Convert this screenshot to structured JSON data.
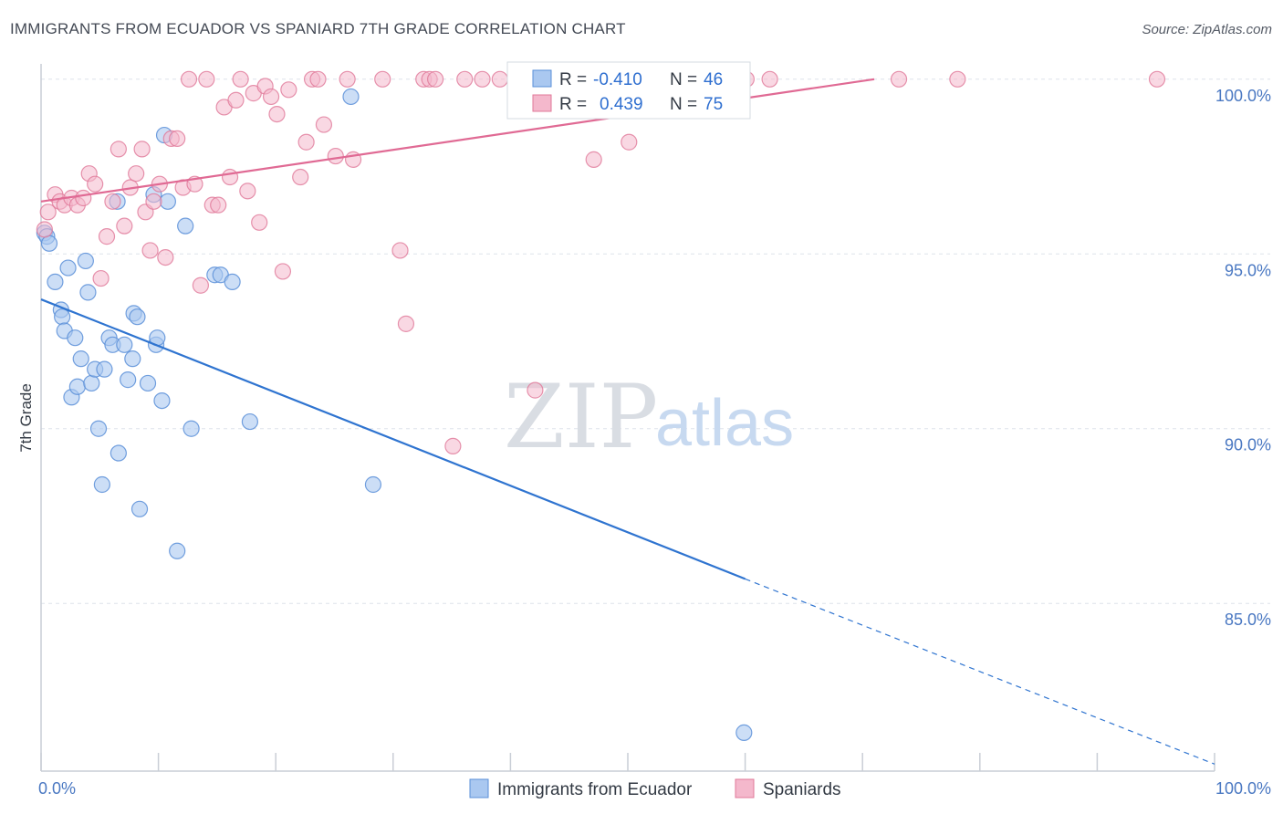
{
  "header": {
    "title": "IMMIGRANTS FROM ECUADOR VS SPANIARD 7TH GRADE CORRELATION CHART",
    "source": "Source: ZipAtlas.com"
  },
  "watermark": {
    "zip": "ZIP",
    "atlas": "atlas"
  },
  "legend_top": {
    "rows": [
      {
        "r_label": "R =",
        "r_value": "-0.410",
        "n_label": "N =",
        "n_value": "46"
      },
      {
        "r_label": "R =",
        "r_value": "0.439",
        "n_label": "N =",
        "n_value": "75"
      }
    ]
  },
  "legend_bottom": {
    "items": [
      "Immigrants from Ecuador",
      "Spaniards"
    ]
  },
  "colors": {
    "blue_fill": "#aac8f0",
    "blue_stroke": "#5a8fd8",
    "blue_line": "#2f74d0",
    "pink_fill": "#f4b8cc",
    "pink_stroke": "#e07898",
    "pink_line": "#e06a94",
    "grid": "#dde2ea",
    "axis": "#c9ced6"
  },
  "chart_data": {
    "type": "scatter",
    "ylabel": "7th Grade",
    "xlim": [
      0,
      100
    ],
    "ylim": [
      80.2,
      100.7
    ],
    "x_tick_labels": [
      {
        "value": 0,
        "label": "0.0%"
      },
      {
        "value": 100,
        "label": "100.0%"
      }
    ],
    "y_ticks": [
      {
        "value": 100,
        "label": "100.0%"
      },
      {
        "value": 95,
        "label": "95.0%"
      },
      {
        "value": 90,
        "label": "90.0%"
      },
      {
        "value": 85,
        "label": "85.0%"
      }
    ],
    "grid": true,
    "series": [
      {
        "name": "Immigrants from Ecuador",
        "points": [
          [
            0.3,
            95.6
          ],
          [
            0.5,
            95.5
          ],
          [
            0.7,
            95.3
          ],
          [
            1.2,
            94.2
          ],
          [
            1.7,
            93.4
          ],
          [
            1.8,
            93.2
          ],
          [
            2.0,
            92.8
          ],
          [
            2.3,
            94.6
          ],
          [
            2.6,
            90.9
          ],
          [
            2.9,
            92.6
          ],
          [
            3.1,
            91.2
          ],
          [
            3.4,
            92.0
          ],
          [
            3.8,
            94.8
          ],
          [
            4.0,
            93.9
          ],
          [
            4.3,
            91.3
          ],
          [
            4.6,
            91.7
          ],
          [
            4.9,
            90.0
          ],
          [
            5.2,
            88.4
          ],
          [
            5.4,
            91.7
          ],
          [
            5.8,
            92.6
          ],
          [
            6.1,
            92.4
          ],
          [
            6.6,
            89.3
          ],
          [
            7.1,
            92.4
          ],
          [
            7.4,
            91.4
          ],
          [
            7.8,
            92.0
          ],
          [
            7.9,
            93.3
          ],
          [
            8.2,
            93.2
          ],
          [
            8.4,
            87.7
          ],
          [
            9.1,
            91.3
          ],
          [
            9.6,
            96.7
          ],
          [
            9.8,
            92.4
          ],
          [
            9.9,
            92.6
          ],
          [
            10.3,
            90.8
          ],
          [
            10.5,
            98.4
          ],
          [
            10.8,
            96.5
          ],
          [
            11.6,
            86.5
          ],
          [
            12.3,
            95.8
          ],
          [
            12.8,
            90.0
          ],
          [
            14.8,
            94.4
          ],
          [
            15.3,
            94.4
          ],
          [
            16.3,
            94.2
          ],
          [
            17.8,
            90.2
          ],
          [
            26.4,
            99.5
          ],
          [
            28.3,
            88.4
          ],
          [
            59.9,
            81.3
          ],
          [
            6.5,
            96.5
          ]
        ]
      },
      {
        "name": "Spaniards",
        "points": [
          [
            0.3,
            95.7
          ],
          [
            0.6,
            96.2
          ],
          [
            1.2,
            96.7
          ],
          [
            1.6,
            96.5
          ],
          [
            2.0,
            96.4
          ],
          [
            2.6,
            96.6
          ],
          [
            3.1,
            96.4
          ],
          [
            3.6,
            96.6
          ],
          [
            4.1,
            97.3
          ],
          [
            4.6,
            97.0
          ],
          [
            5.1,
            94.3
          ],
          [
            5.6,
            95.5
          ],
          [
            6.1,
            96.5
          ],
          [
            6.6,
            98.0
          ],
          [
            7.1,
            95.8
          ],
          [
            7.6,
            96.9
          ],
          [
            8.1,
            97.3
          ],
          [
            8.6,
            98.0
          ],
          [
            8.9,
            96.2
          ],
          [
            9.3,
            95.1
          ],
          [
            9.6,
            96.5
          ],
          [
            10.1,
            97.0
          ],
          [
            10.6,
            94.9
          ],
          [
            11.1,
            98.3
          ],
          [
            11.6,
            98.3
          ],
          [
            12.1,
            96.9
          ],
          [
            12.6,
            100.0
          ],
          [
            13.1,
            97.0
          ],
          [
            13.6,
            94.1
          ],
          [
            14.1,
            100.0
          ],
          [
            14.6,
            96.4
          ],
          [
            15.1,
            96.4
          ],
          [
            15.6,
            99.2
          ],
          [
            16.1,
            97.2
          ],
          [
            16.6,
            99.4
          ],
          [
            17.0,
            100.0
          ],
          [
            17.6,
            96.8
          ],
          [
            18.1,
            99.6
          ],
          [
            18.6,
            95.9
          ],
          [
            19.1,
            99.8
          ],
          [
            19.6,
            99.5
          ],
          [
            20.1,
            99.0
          ],
          [
            20.6,
            94.5
          ],
          [
            21.1,
            99.7
          ],
          [
            22.1,
            97.2
          ],
          [
            22.6,
            98.2
          ],
          [
            23.1,
            100.0
          ],
          [
            23.6,
            100.0
          ],
          [
            24.1,
            98.7
          ],
          [
            25.1,
            97.8
          ],
          [
            26.1,
            100.0
          ],
          [
            26.6,
            97.7
          ],
          [
            29.1,
            100.0
          ],
          [
            30.6,
            95.1
          ],
          [
            31.1,
            93.0
          ],
          [
            32.6,
            100.0
          ],
          [
            33.1,
            100.0
          ],
          [
            33.6,
            100.0
          ],
          [
            35.1,
            89.5
          ],
          [
            36.1,
            100.0
          ],
          [
            37.6,
            100.0
          ],
          [
            39.1,
            100.0
          ],
          [
            42.1,
            91.1
          ],
          [
            44.6,
            100.0
          ],
          [
            47.1,
            97.7
          ],
          [
            47.6,
            100.0
          ],
          [
            50.1,
            98.2
          ],
          [
            55.1,
            100.0
          ],
          [
            60.1,
            100.0
          ],
          [
            62.1,
            100.0
          ],
          [
            73.1,
            100.0
          ],
          [
            78.1,
            100.0
          ],
          [
            95.1,
            100.0
          ],
          [
            47.0,
            100.0
          ],
          [
            52.0,
            100.0
          ]
        ]
      }
    ],
    "trendlines": [
      {
        "series": "Immigrants from Ecuador",
        "x": [
          0,
          60
        ],
        "y": [
          93.7,
          85.7
        ],
        "dashed_extension_x": [
          60,
          100
        ],
        "dashed_extension_y": [
          85.7,
          80.4
        ]
      },
      {
        "series": "Spaniards",
        "x": [
          0,
          71
        ],
        "y": [
          96.5,
          100.0
        ]
      }
    ]
  }
}
